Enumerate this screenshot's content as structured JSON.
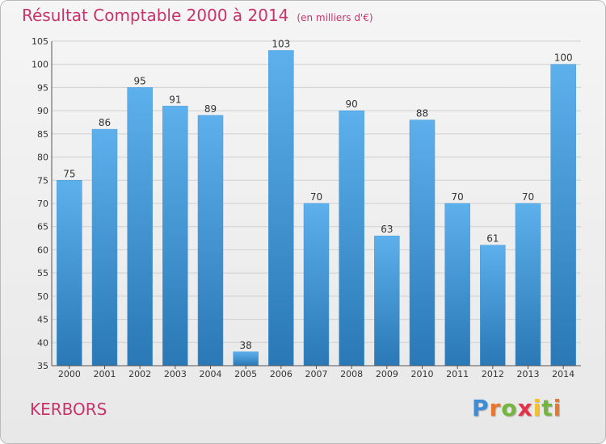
{
  "header": {
    "title": "Résultat Comptable 2000 à 2014",
    "unit": "(en milliers d'€)"
  },
  "footer": {
    "town": "KERBORS",
    "logo": "Proxiti"
  },
  "colors": {
    "title": "#c8336a",
    "bar_light": "#5aaeea",
    "bar_dark": "#2a7ab8",
    "grid": "#cfcfcf"
  },
  "chart_data": {
    "type": "bar",
    "title": "Résultat Comptable 2000 à 2014",
    "subtitle": "(en milliers d'€)",
    "xlabel": "",
    "ylabel": "",
    "categories": [
      "2000",
      "2001",
      "2002",
      "2003",
      "2004",
      "2005",
      "2006",
      "2007",
      "2008",
      "2009",
      "2010",
      "2011",
      "2012",
      "2013",
      "2014"
    ],
    "values": [
      75,
      86,
      95,
      91,
      89,
      38,
      103,
      70,
      90,
      63,
      88,
      70,
      61,
      70,
      100
    ],
    "ylim": [
      35,
      105
    ],
    "yticks": [
      35,
      40,
      45,
      50,
      55,
      60,
      65,
      70,
      75,
      80,
      85,
      90,
      95,
      100,
      105
    ],
    "grid": true,
    "legend": "none"
  }
}
